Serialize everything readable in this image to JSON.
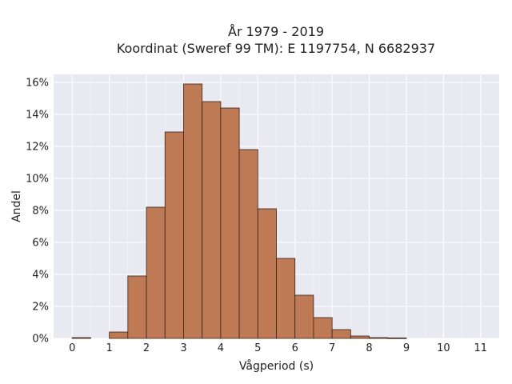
{
  "chart_data": {
    "type": "bar",
    "title": "År 1979 - 2019",
    "subtitle": "Koordinat (Sweref 99 TM): E 1197754, N 6682937",
    "xlabel": "Vågperiod (s)",
    "ylabel": "Andel",
    "xlim": [
      -0.5,
      11.5
    ],
    "ylim": [
      0,
      16.5
    ],
    "x_ticks": [
      0,
      1,
      2,
      3,
      4,
      5,
      6,
      7,
      8,
      9,
      10,
      11
    ],
    "y_ticks": [
      0,
      2,
      4,
      6,
      8,
      10,
      12,
      14,
      16
    ],
    "y_tick_labels": [
      "0%",
      "2%",
      "4%",
      "6%",
      "8%",
      "10%",
      "12%",
      "14%",
      "16%"
    ],
    "bin_width": 0.5,
    "bins": [
      {
        "x0": 0.0,
        "x1": 0.5,
        "value": 0.05
      },
      {
        "x0": 0.5,
        "x1": 1.0,
        "value": 0.0
      },
      {
        "x0": 1.0,
        "x1": 1.5,
        "value": 0.4
      },
      {
        "x0": 1.5,
        "x1": 2.0,
        "value": 3.9
      },
      {
        "x0": 2.0,
        "x1": 2.5,
        "value": 8.2
      },
      {
        "x0": 2.5,
        "x1": 3.0,
        "value": 12.9
      },
      {
        "x0": 3.0,
        "x1": 3.5,
        "value": 15.9
      },
      {
        "x0": 3.5,
        "x1": 4.0,
        "value": 14.8
      },
      {
        "x0": 4.0,
        "x1": 4.5,
        "value": 14.4
      },
      {
        "x0": 4.5,
        "x1": 5.0,
        "value": 11.8
      },
      {
        "x0": 5.0,
        "x1": 5.5,
        "value": 8.1
      },
      {
        "x0": 5.5,
        "x1": 6.0,
        "value": 5.0
      },
      {
        "x0": 6.0,
        "x1": 6.5,
        "value": 2.7
      },
      {
        "x0": 6.5,
        "x1": 7.0,
        "value": 1.3
      },
      {
        "x0": 7.0,
        "x1": 7.5,
        "value": 0.55
      },
      {
        "x0": 7.5,
        "x1": 8.0,
        "value": 0.15
      },
      {
        "x0": 8.0,
        "x1": 8.5,
        "value": 0.05
      },
      {
        "x0": 8.5,
        "x1": 9.0,
        "value": 0.03
      }
    ],
    "bar_color": "#bd7a55",
    "bar_edge_color": "#3a2218",
    "plot_background": "#e9e9f1",
    "grid": true,
    "grid_color": "#ffffff"
  }
}
